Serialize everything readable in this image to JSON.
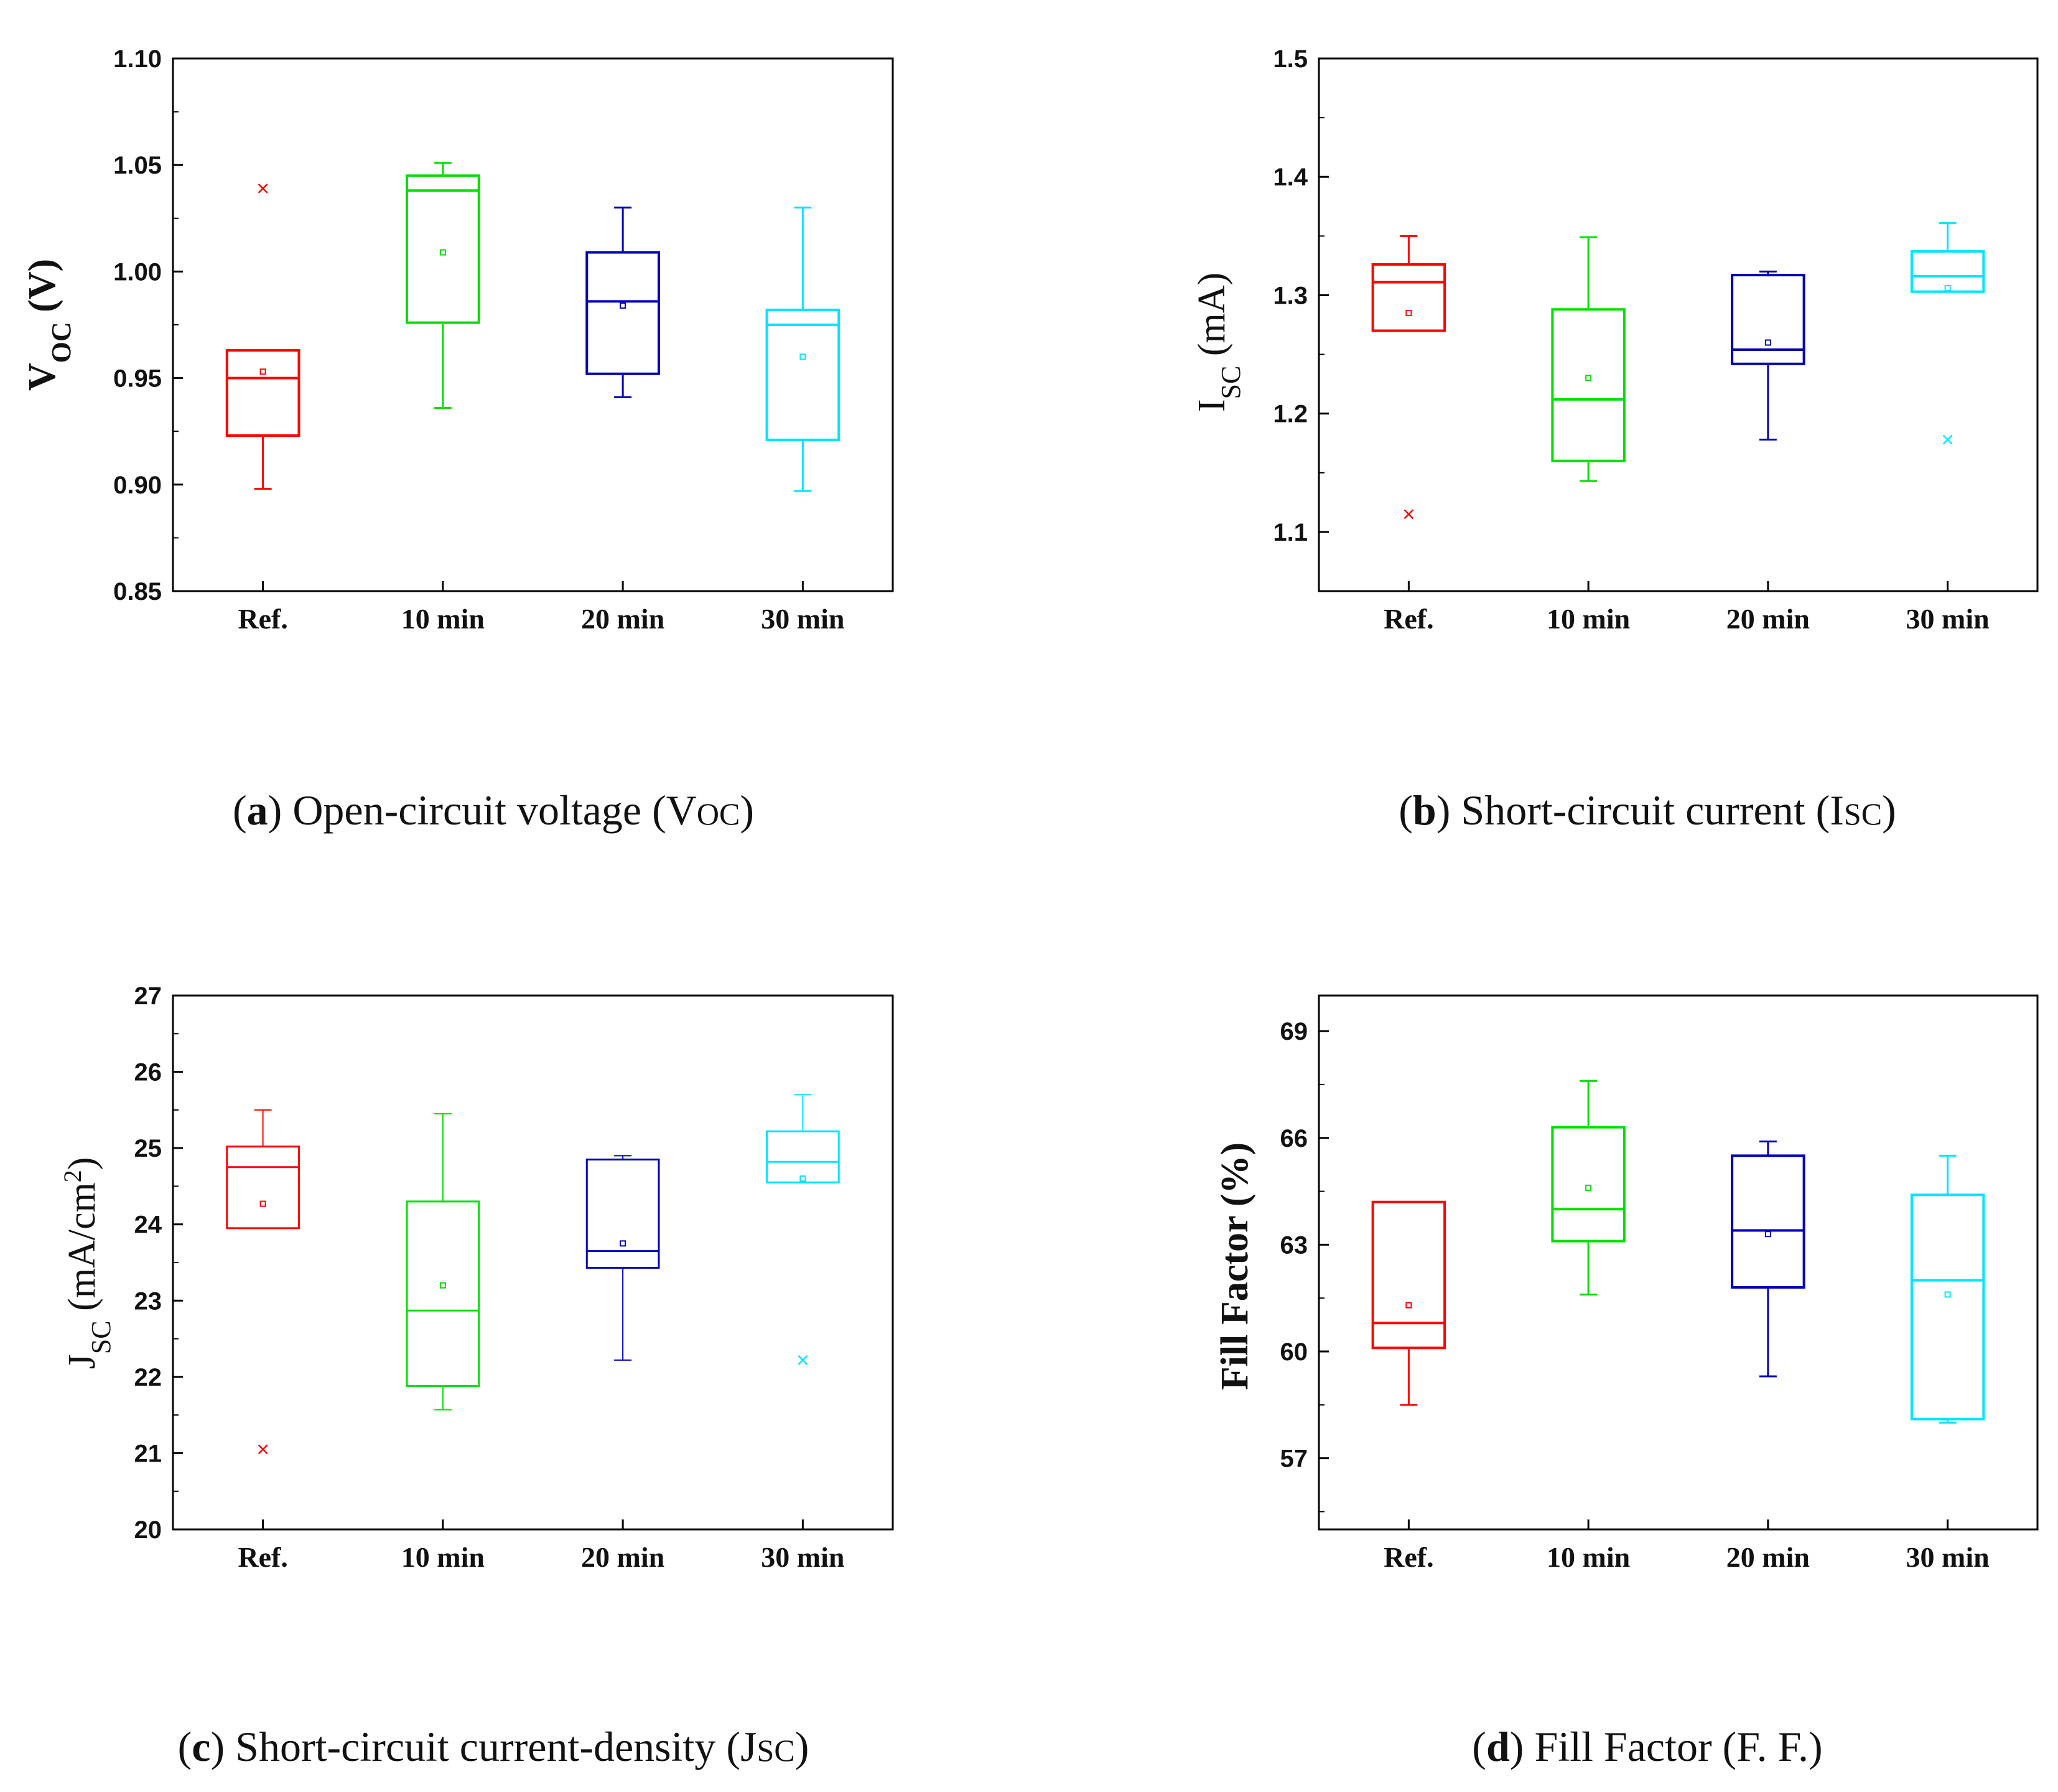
{
  "chart_data": [
    {
      "panel": "a",
      "type": "box",
      "title": "",
      "ylabel": {
        "main": "V",
        "sub": "OC",
        "unit": " (V)"
      },
      "ylabel_style": "bold",
      "caption": {
        "letter": "a",
        "text": "Open-circuit voltage (V",
        "sc": "OC",
        "end": ")"
      },
      "categories": [
        "Ref.",
        "10 min",
        "20 min",
        "30 min"
      ],
      "ylim": [
        0.85,
        1.1
      ],
      "yticks": [
        0.85,
        0.9,
        0.95,
        1.0,
        1.05,
        1.1
      ],
      "ytick_labels": [
        "0.85",
        "0.90",
        "0.95",
        "1.00",
        "1.05",
        "1.10"
      ],
      "minor": true,
      "series": [
        {
          "name": "Ref.",
          "color": "#ff0000",
          "whisker_low": 0.898,
          "q1": 0.923,
          "median": 0.95,
          "q3": 0.963,
          "whisker_high": 0.963,
          "mean": 0.953,
          "outliers": [
            1.039
          ],
          "stroke": 3
        },
        {
          "name": "10 min",
          "color": "#00e000",
          "whisker_low": 0.936,
          "q1": 0.976,
          "median": 1.038,
          "q3": 1.045,
          "whisker_high": 1.051,
          "mean": 1.009,
          "outliers": [],
          "stroke": 3
        },
        {
          "name": "20 min",
          "color": "#0000b4",
          "whisker_low": 0.941,
          "q1": 0.952,
          "median": 0.986,
          "q3": 1.009,
          "whisker_high": 1.03,
          "mean": 0.984,
          "outliers": [],
          "stroke": 3
        },
        {
          "name": "30 min",
          "color": "#00e5ff",
          "whisker_low": 0.897,
          "q1": 0.921,
          "median": 0.975,
          "q3": 0.982,
          "whisker_high": 1.03,
          "mean": 0.96,
          "outliers": [],
          "stroke": 3
        }
      ]
    },
    {
      "panel": "b",
      "type": "box",
      "title": "",
      "ylabel": {
        "main": "I",
        "sub": "SC",
        "unit": " (mA)"
      },
      "ylabel_style": "normal",
      "caption": {
        "letter": "b",
        "text": "Short-circuit current (I",
        "sc": "SC",
        "end": ")"
      },
      "categories": [
        "Ref.",
        "10 min",
        "20 min",
        "30 min"
      ],
      "ylim": [
        1.05,
        1.5
      ],
      "yticks": [
        1.1,
        1.2,
        1.3,
        1.4,
        1.5
      ],
      "ytick_labels": [
        "1.1",
        "1.2",
        "1.3",
        "1.4",
        "1.5"
      ],
      "minor": true,
      "series": [
        {
          "name": "Ref.",
          "color": "#ff0000",
          "whisker_low": 1.27,
          "q1": 1.27,
          "median": 1.311,
          "q3": 1.326,
          "whisker_high": 1.35,
          "mean": 1.285,
          "outliers": [
            1.115
          ],
          "stroke": 3
        },
        {
          "name": "10 min",
          "color": "#00e000",
          "whisker_low": 1.143,
          "q1": 1.16,
          "median": 1.212,
          "q3": 1.288,
          "whisker_high": 1.349,
          "mean": 1.23,
          "outliers": [],
          "stroke": 3
        },
        {
          "name": "20 min",
          "color": "#0000b4",
          "whisker_low": 1.178,
          "q1": 1.242,
          "median": 1.254,
          "q3": 1.317,
          "whisker_high": 1.32,
          "mean": 1.26,
          "outliers": [],
          "stroke": 3
        },
        {
          "name": "30 min",
          "color": "#00e5ff",
          "whisker_low": 1.303,
          "q1": 1.303,
          "median": 1.316,
          "q3": 1.337,
          "whisker_high": 1.361,
          "mean": 1.306,
          "outliers": [
            1.178
          ],
          "stroke": 3
        }
      ]
    },
    {
      "panel": "c",
      "type": "box",
      "title": "",
      "ylabel": {
        "main": "J",
        "sub": "SC",
        "unit": " (mA/cm",
        "sup": "2",
        "close": ")"
      },
      "ylabel_style": "normal",
      "caption": {
        "letter": "c",
        "text": "Short-circuit current-density (J",
        "sc": "SC",
        "end": ")"
      },
      "categories": [
        "Ref.",
        "10 min",
        "20 min",
        "30 min"
      ],
      "ylim": [
        20,
        27
      ],
      "yticks": [
        20,
        21,
        22,
        23,
        24,
        25,
        26,
        27
      ],
      "ytick_labels": [
        "20",
        "21",
        "22",
        "23",
        "24",
        "25",
        "26",
        "27"
      ],
      "minor": true,
      "series": [
        {
          "name": "Ref.",
          "color": "#ff0000",
          "whisker_low": 23.95,
          "q1": 23.95,
          "median": 24.75,
          "q3": 25.02,
          "whisker_high": 25.5,
          "mean": 24.27,
          "outliers": [
            21.05
          ],
          "stroke": 2
        },
        {
          "name": "10 min",
          "color": "#00e000",
          "whisker_low": 21.57,
          "q1": 21.88,
          "median": 22.87,
          "q3": 24.3,
          "whisker_high": 25.45,
          "mean": 23.2,
          "outliers": [],
          "stroke": 2
        },
        {
          "name": "20 min",
          "color": "#0000b4",
          "whisker_low": 22.22,
          "q1": 23.43,
          "median": 23.65,
          "q3": 24.85,
          "whisker_high": 24.9,
          "mean": 23.75,
          "outliers": [],
          "stroke": 2
        },
        {
          "name": "30 min",
          "color": "#00e5ff",
          "whisker_low": 24.55,
          "q1": 24.55,
          "median": 24.82,
          "q3": 25.22,
          "whisker_high": 25.7,
          "mean": 24.6,
          "outliers": [
            22.22
          ],
          "stroke": 2
        }
      ]
    },
    {
      "panel": "d",
      "type": "box",
      "title": "",
      "ylabel": {
        "main": "Fill Factor (%)",
        "sub": "",
        "unit": ""
      },
      "ylabel_style": "bold",
      "caption": {
        "letter": "d",
        "text": "Fill Factor (F. F.)",
        "sc": "",
        "end": ""
      },
      "categories": [
        "Ref.",
        "10 min",
        "20 min",
        "30 min"
      ],
      "ylim": [
        55,
        70
      ],
      "yticks": [
        57,
        60,
        63,
        66,
        69
      ],
      "ytick_labels": [
        "57",
        "60",
        "63",
        "66",
        "69"
      ],
      "minor": true,
      "series": [
        {
          "name": "Ref.",
          "color": "#ff0000",
          "whisker_low": 58.5,
          "q1": 60.1,
          "median": 60.8,
          "q3": 64.2,
          "whisker_high": 64.2,
          "mean": 61.3,
          "outliers": [],
          "stroke": 3
        },
        {
          "name": "10 min",
          "color": "#00e000",
          "whisker_low": 61.6,
          "q1": 63.1,
          "median": 64.0,
          "q3": 66.3,
          "whisker_high": 67.6,
          "mean": 64.6,
          "outliers": [],
          "stroke": 3
        },
        {
          "name": "20 min",
          "color": "#0000b4",
          "whisker_low": 59.3,
          "q1": 61.8,
          "median": 63.4,
          "q3": 65.5,
          "whisker_high": 65.9,
          "mean": 63.3,
          "outliers": [],
          "stroke": 3
        },
        {
          "name": "30 min",
          "color": "#00e5ff",
          "whisker_low": 58.0,
          "q1": 58.1,
          "median": 62.0,
          "q3": 64.4,
          "whisker_high": 65.5,
          "mean": 61.6,
          "outliers": [],
          "stroke": 3
        }
      ]
    }
  ]
}
